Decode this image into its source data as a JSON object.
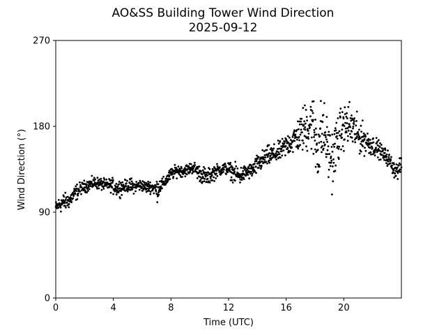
{
  "chart_data": {
    "type": "scatter",
    "title": "AO&SS Building Tower Wind Direction",
    "subtitle": "2025-09-12",
    "xlabel": "Time (UTC)",
    "ylabel": "Wind Direction (°)",
    "xlim": [
      0,
      24
    ],
    "ylim": [
      0,
      270
    ],
    "xticks": [
      0,
      4,
      8,
      12,
      16,
      20
    ],
    "xtick_labels": [
      "0",
      "4",
      "8",
      "12",
      "16",
      "20"
    ],
    "yticks": [
      0,
      90,
      180,
      270
    ],
    "ytick_labels": [
      "0",
      "90",
      "180",
      "270"
    ],
    "grid": false,
    "legend": "none",
    "marker_color": "#000000",
    "series": [
      {
        "x": [
          0.0,
          0.25,
          0.5,
          0.75,
          1.0,
          1.25,
          1.5,
          1.75,
          2.0,
          2.25,
          2.5,
          2.75,
          3.0,
          3.25,
          3.5,
          3.75,
          4.0,
          4.25,
          4.5,
          4.75,
          5.0,
          5.25,
          5.5,
          5.75,
          6.0,
          6.25,
          6.5,
          6.75,
          7.0,
          7.25,
          7.5,
          7.75,
          8.0,
          8.25,
          8.5,
          8.75,
          9.0,
          9.25,
          9.5,
          9.75,
          10.0,
          10.25,
          10.5,
          10.75,
          11.0,
          11.25,
          11.5,
          11.75,
          12.0,
          12.25,
          12.5,
          12.75,
          13.0,
          13.25,
          13.5,
          13.75,
          14.0,
          14.25,
          14.5,
          14.75,
          15.0,
          15.25,
          15.5,
          15.75,
          16.0,
          16.25,
          16.5,
          16.75,
          17.0,
          17.25,
          17.5,
          17.75,
          18.0,
          18.25,
          18.5,
          18.75,
          19.0,
          19.25,
          19.5,
          19.75,
          20.0,
          20.25,
          20.5,
          20.75,
          21.0,
          21.25,
          21.5,
          21.75,
          22.0,
          22.25,
          22.5,
          22.75,
          23.0,
          23.25,
          23.5,
          23.75,
          24.0
        ],
        "y": [
          95,
          98,
          100,
          101,
          103,
          108,
          112,
          115,
          117,
          118,
          120,
          121,
          120,
          119,
          118,
          119,
          117,
          115,
          116,
          117,
          118,
          117,
          117,
          118,
          118,
          116,
          117,
          116,
          113,
          118,
          120,
          125,
          130,
          132,
          134,
          133,
          134,
          135,
          137,
          134,
          131,
          128,
          126,
          129,
          132,
          134,
          135,
          136,
          135,
          132,
          130,
          128,
          130,
          132,
          133,
          135,
          140,
          143,
          146,
          149,
          150,
          151,
          153,
          156,
          160,
          163,
          165,
          170,
          172,
          178,
          182,
          185,
          170,
          158,
          175,
          168,
          150,
          145,
          165,
          172,
          178,
          182,
          180,
          175,
          170,
          168,
          165,
          162,
          160,
          158,
          155,
          150,
          148,
          142,
          135,
          133,
          140
        ],
        "spread": [
          3,
          4,
          5,
          4,
          4,
          4,
          4,
          3,
          3,
          3,
          3,
          3,
          3,
          3,
          3,
          3,
          4,
          4,
          4,
          3,
          3,
          4,
          3,
          3,
          3,
          3,
          3,
          3,
          6,
          4,
          3,
          3,
          3,
          3,
          3,
          3,
          3,
          3,
          3,
          4,
          4,
          5,
          4,
          4,
          4,
          3,
          3,
          3,
          4,
          4,
          5,
          5,
          4,
          4,
          4,
          4,
          5,
          5,
          5,
          5,
          5,
          5,
          5,
          5,
          6,
          6,
          7,
          8,
          10,
          12,
          14,
          15,
          18,
          20,
          18,
          14,
          15,
          15,
          14,
          12,
          10,
          12,
          12,
          10,
          9,
          8,
          7,
          6,
          5,
          5,
          4,
          4,
          4,
          4,
          4,
          4,
          4
        ]
      }
    ]
  }
}
